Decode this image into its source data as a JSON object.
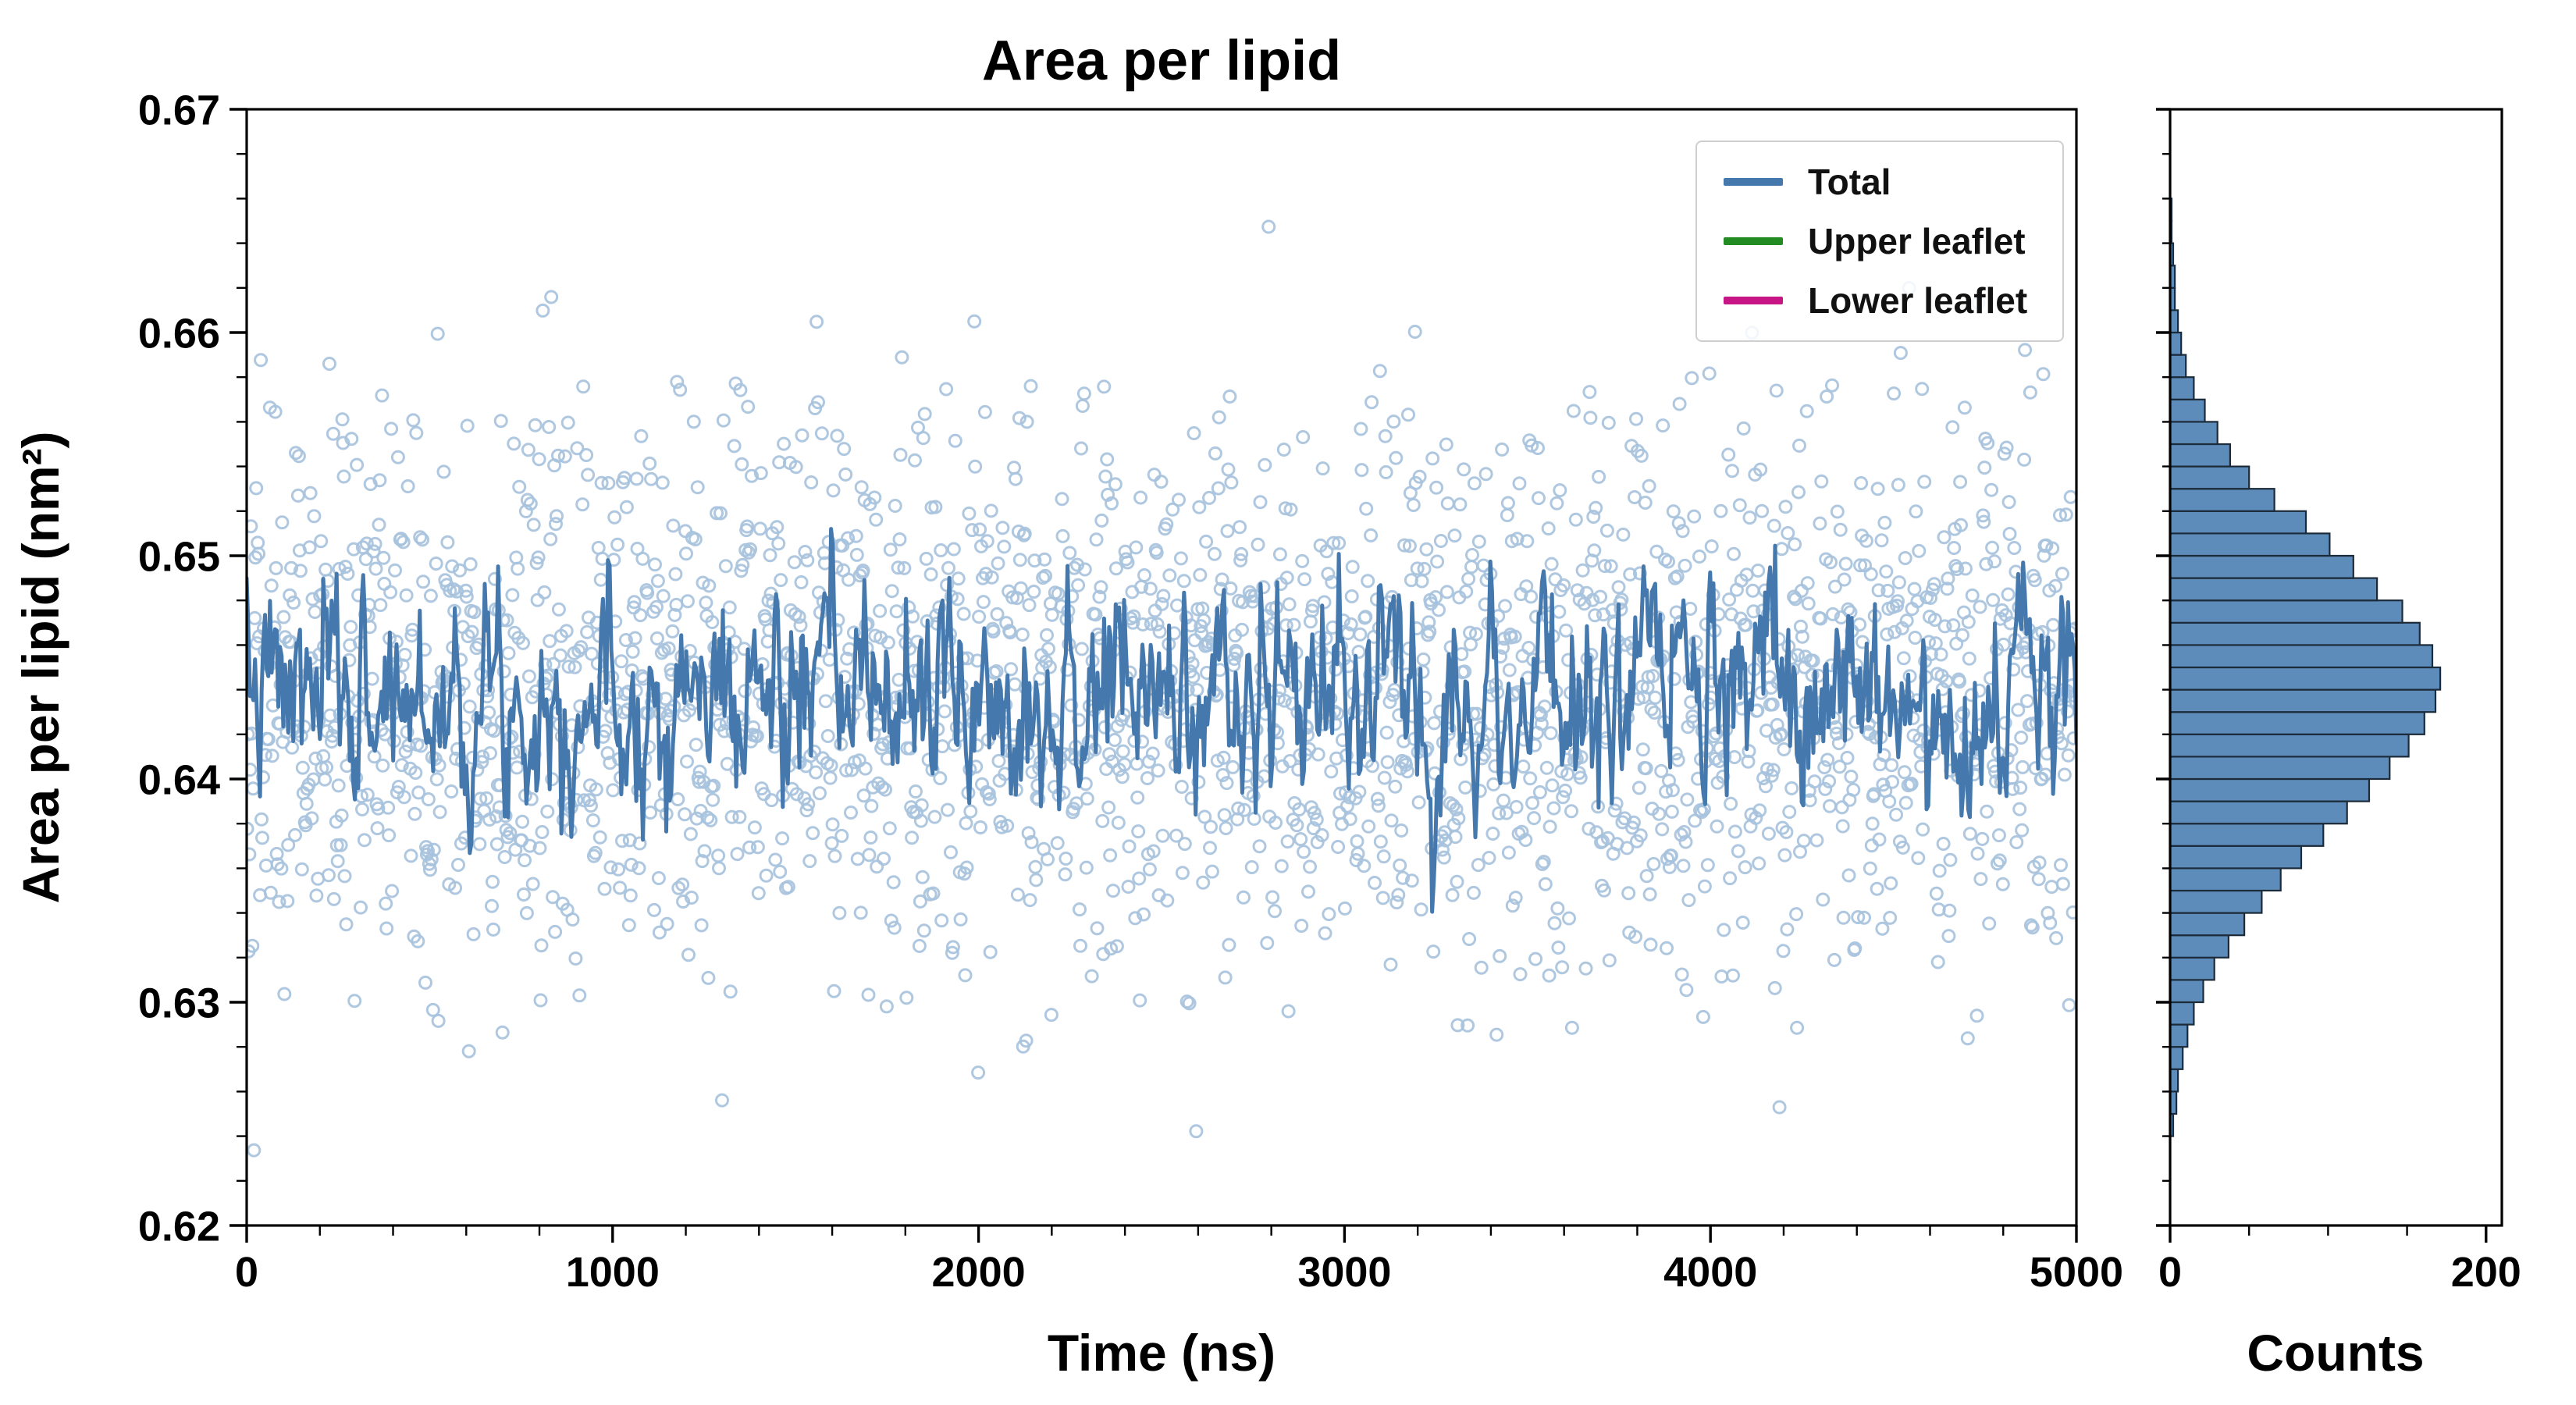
{
  "page": {
    "background": "#ffffff"
  },
  "chart_data": {
    "type": "scatter+line with horizontal marginal histogram",
    "title": "Area per lipid",
    "main": {
      "xlabel": "Time (ns)",
      "ylabel": "Area per lipid (nm²)",
      "xlim": [
        0,
        5000
      ],
      "ylim": [
        0.62,
        0.67
      ],
      "x_ticks": [
        0,
        1000,
        2000,
        3000,
        4000,
        5000
      ],
      "y_ticks": [
        0.62,
        0.63,
        0.64,
        0.65,
        0.66,
        0.67
      ],
      "x_minor_step": 200,
      "y_minor_step": 0.002,
      "grid": false,
      "scatter": {
        "n": 2400,
        "mean": 0.6437,
        "sd": 0.0062,
        "seed": 42,
        "color": "#a6c2dd",
        "marker": "open-circle",
        "radius": 7.5
      },
      "line": {
        "n": 1100,
        "mean": 0.6437,
        "sd": 0.0024,
        "ar": 0.6,
        "seed": 7,
        "color": "#4579ad",
        "width": 5
      }
    },
    "legend": {
      "position": "upper right",
      "items": [
        {
          "label": "Total",
          "color": "#4579ad"
        },
        {
          "label": "Upper leaflet",
          "color": "#228B22"
        },
        {
          "label": "Lower leaflet",
          "color": "#C71585"
        }
      ]
    },
    "histogram": {
      "xlabel": "Counts",
      "xlim": [
        0,
        210
      ],
      "x_ticks": [
        0,
        200
      ],
      "x_minor_ticks": [
        50,
        100,
        150
      ],
      "orientation": "horizontal",
      "bin_start": 0.624,
      "bin_width": 0.001,
      "counts": [
        2,
        4,
        5,
        8,
        11,
        15,
        21,
        28,
        37,
        47,
        58,
        70,
        83,
        97,
        112,
        126,
        139,
        151,
        161,
        168,
        171,
        166,
        158,
        147,
        131,
        116,
        101,
        86,
        66,
        50,
        38,
        30,
        22,
        15,
        10,
        7,
        5,
        3,
        3,
        2,
        1,
        1
      ],
      "fill": "#5e8cba",
      "edge": "#1c2b3a"
    }
  }
}
